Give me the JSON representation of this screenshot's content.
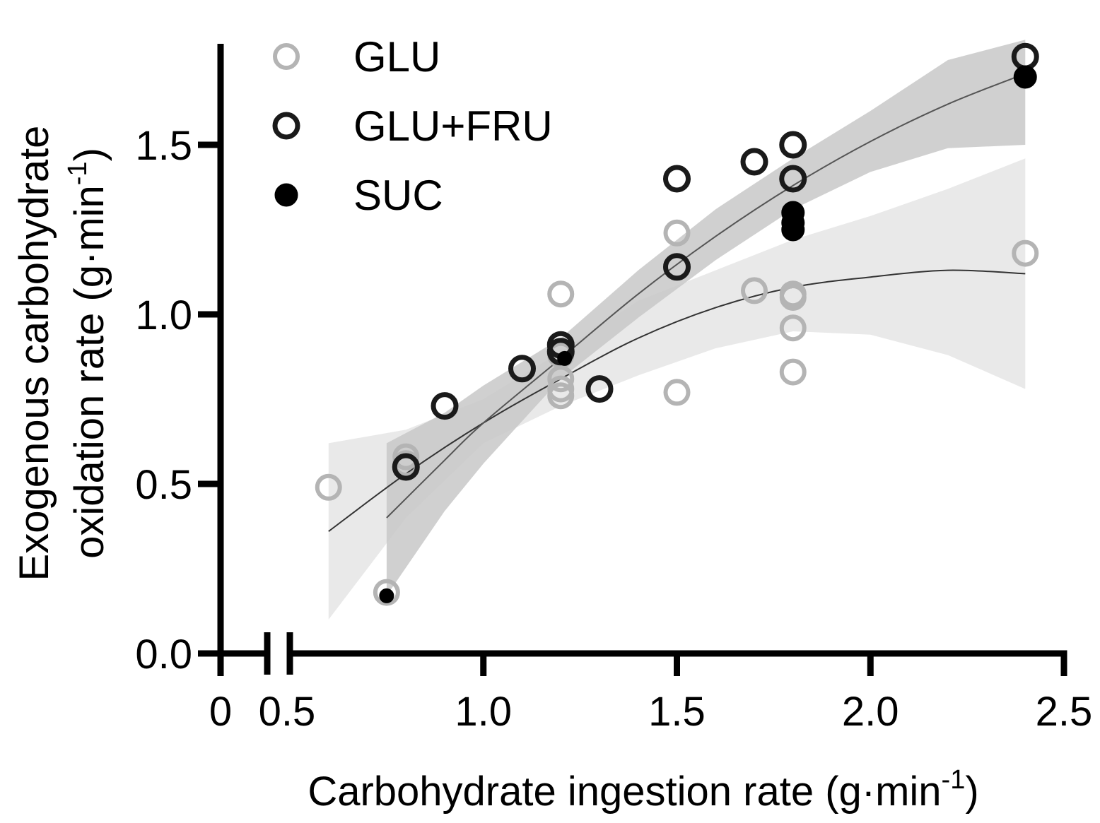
{
  "chart_data": {
    "type": "scatter",
    "title": "",
    "xlabel": "Carbohydrate ingestion rate (g·min",
    "xlabel_sup": "-1",
    "xlabel_end": ")",
    "ylabel_line1": "Exogenous carbohydrate",
    "ylabel_line2": "oxidation rate (g·min",
    "ylabel_sup": "-1",
    "ylabel_end": ")",
    "x_axis_break": true,
    "x_ticks": [
      {
        "value": 0,
        "label": "0"
      },
      {
        "value": 0.5,
        "label": "0.5"
      },
      {
        "value": 1.0,
        "label": "1.0"
      },
      {
        "value": 1.5,
        "label": "1.5"
      },
      {
        "value": 2.0,
        "label": "2.0"
      },
      {
        "value": 2.5,
        "label": "2.5"
      }
    ],
    "y_ticks": [
      {
        "value": 0.0,
        "label": "0.0"
      },
      {
        "value": 0.5,
        "label": "0.5"
      },
      {
        "value": 1.0,
        "label": "1.0"
      },
      {
        "value": 1.5,
        "label": "1.5"
      }
    ],
    "xlim": [
      0.5,
      2.5
    ],
    "ylim": [
      0.0,
      1.8
    ],
    "legend_position": "top-left",
    "legend": [
      {
        "name": "GLU",
        "style": "open-light",
        "color": "#b4b4b4"
      },
      {
        "name": "GLU+FRU",
        "style": "open-dark",
        "color": "#1a1a1a"
      },
      {
        "name": "SUC",
        "style": "filled",
        "color": "#000000"
      }
    ],
    "series": [
      {
        "name": "GLU",
        "style": "open-light",
        "points": [
          {
            "x": 0.6,
            "y": 0.49
          },
          {
            "x": 0.8,
            "y": 0.58
          },
          {
            "x": 0.8,
            "y": 0.56
          },
          {
            "x": 1.2,
            "y": 1.06
          },
          {
            "x": 1.2,
            "y": 0.88
          },
          {
            "x": 1.2,
            "y": 0.81
          },
          {
            "x": 1.2,
            "y": 0.78
          },
          {
            "x": 1.2,
            "y": 0.76
          },
          {
            "x": 1.5,
            "y": 1.24
          },
          {
            "x": 1.5,
            "y": 0.77
          },
          {
            "x": 1.7,
            "y": 1.07
          },
          {
            "x": 1.8,
            "y": 1.06
          },
          {
            "x": 1.8,
            "y": 1.05
          },
          {
            "x": 1.8,
            "y": 0.96
          },
          {
            "x": 1.8,
            "y": 0.83
          },
          {
            "x": 2.4,
            "y": 1.18
          },
          {
            "x": 0.75,
            "y": 0.18
          }
        ]
      },
      {
        "name": "GLU+FRU",
        "style": "open-dark",
        "points": [
          {
            "x": 0.8,
            "y": 0.55
          },
          {
            "x": 0.9,
            "y": 0.73
          },
          {
            "x": 1.1,
            "y": 0.84
          },
          {
            "x": 1.2,
            "y": 0.91
          },
          {
            "x": 1.2,
            "y": 0.89
          },
          {
            "x": 1.3,
            "y": 0.78
          },
          {
            "x": 1.5,
            "y": 1.4
          },
          {
            "x": 1.5,
            "y": 1.14
          },
          {
            "x": 1.7,
            "y": 1.45
          },
          {
            "x": 1.8,
            "y": 1.5
          },
          {
            "x": 1.8,
            "y": 1.4
          },
          {
            "x": 2.4,
            "y": 1.76
          }
        ]
      },
      {
        "name": "SUC",
        "style": "filled",
        "points": [
          {
            "x": 0.75,
            "y": 0.17
          },
          {
            "x": 1.21,
            "y": 0.87
          },
          {
            "x": 1.8,
            "y": 1.3
          },
          {
            "x": 1.8,
            "y": 1.27
          },
          {
            "x": 1.8,
            "y": 1.25
          },
          {
            "x": 2.4,
            "y": 1.7
          }
        ]
      }
    ],
    "fits": [
      {
        "name": "GLU fit",
        "color": "#333333",
        "band_color": "#e9e9e9",
        "curve": [
          {
            "x": 0.6,
            "y": 0.36
          },
          {
            "x": 0.8,
            "y": 0.53
          },
          {
            "x": 1.0,
            "y": 0.68
          },
          {
            "x": 1.2,
            "y": 0.81
          },
          {
            "x": 1.4,
            "y": 0.93
          },
          {
            "x": 1.6,
            "y": 1.02
          },
          {
            "x": 1.8,
            "y": 1.08
          },
          {
            "x": 2.0,
            "y": 1.11
          },
          {
            "x": 2.2,
            "y": 1.13
          },
          {
            "x": 2.4,
            "y": 1.12
          }
        ],
        "lower": [
          {
            "x": 0.6,
            "y": 0.1
          },
          {
            "x": 0.8,
            "y": 0.4
          },
          {
            "x": 1.0,
            "y": 0.62
          },
          {
            "x": 1.2,
            "y": 0.73
          },
          {
            "x": 1.4,
            "y": 0.82
          },
          {
            "x": 1.6,
            "y": 0.9
          },
          {
            "x": 1.8,
            "y": 0.95
          },
          {
            "x": 2.0,
            "y": 0.94
          },
          {
            "x": 2.2,
            "y": 0.88
          },
          {
            "x": 2.4,
            "y": 0.78
          }
        ],
        "upper": [
          {
            "x": 0.6,
            "y": 0.62
          },
          {
            "x": 0.8,
            "y": 0.66
          },
          {
            "x": 1.0,
            "y": 0.75
          },
          {
            "x": 1.2,
            "y": 0.89
          },
          {
            "x": 1.4,
            "y": 1.04
          },
          {
            "x": 1.6,
            "y": 1.13
          },
          {
            "x": 1.8,
            "y": 1.22
          },
          {
            "x": 2.0,
            "y": 1.29
          },
          {
            "x": 2.2,
            "y": 1.37
          },
          {
            "x": 2.4,
            "y": 1.46
          }
        ]
      },
      {
        "name": "GLU+FRU fit",
        "color": "#555555",
        "band_color": "#c8c8c8",
        "curve": [
          {
            "x": 0.75,
            "y": 0.4
          },
          {
            "x": 0.9,
            "y": 0.57
          },
          {
            "x": 1.0,
            "y": 0.68
          },
          {
            "x": 1.2,
            "y": 0.87
          },
          {
            "x": 1.4,
            "y": 1.06
          },
          {
            "x": 1.6,
            "y": 1.23
          },
          {
            "x": 1.8,
            "y": 1.38
          },
          {
            "x": 2.0,
            "y": 1.51
          },
          {
            "x": 2.2,
            "y": 1.62
          },
          {
            "x": 2.4,
            "y": 1.71
          }
        ],
        "lower": [
          {
            "x": 0.75,
            "y": 0.17
          },
          {
            "x": 0.9,
            "y": 0.42
          },
          {
            "x": 1.0,
            "y": 0.56
          },
          {
            "x": 1.2,
            "y": 0.81
          },
          {
            "x": 1.4,
            "y": 0.99
          },
          {
            "x": 1.6,
            "y": 1.16
          },
          {
            "x": 1.8,
            "y": 1.31
          },
          {
            "x": 2.0,
            "y": 1.42
          },
          {
            "x": 2.2,
            "y": 1.49
          },
          {
            "x": 2.4,
            "y": 1.5
          }
        ],
        "upper": [
          {
            "x": 0.75,
            "y": 0.62
          },
          {
            "x": 0.9,
            "y": 0.71
          },
          {
            "x": 1.0,
            "y": 0.79
          },
          {
            "x": 1.2,
            "y": 0.93
          },
          {
            "x": 1.4,
            "y": 1.13
          },
          {
            "x": 1.6,
            "y": 1.31
          },
          {
            "x": 1.8,
            "y": 1.46
          },
          {
            "x": 2.0,
            "y": 1.6
          },
          {
            "x": 2.2,
            "y": 1.75
          },
          {
            "x": 2.4,
            "y": 1.81
          }
        ]
      }
    ]
  }
}
